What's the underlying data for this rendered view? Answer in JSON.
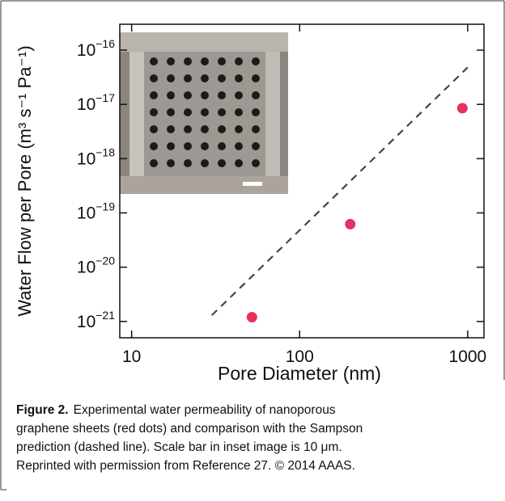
{
  "chart_data": {
    "type": "scatter",
    "xlabel": "Pore Diameter (nm)",
    "ylabel": "Water Flow per Pore (m³ s⁻¹ Pa⁻¹)",
    "xscale": "log",
    "yscale": "log",
    "xlim": [
      8.5,
      1250
    ],
    "ylim": [
      5e-22,
      3e-16
    ],
    "xticks": [
      10,
      100,
      1000
    ],
    "yticks": [
      {
        "value": 1e-16,
        "label": "10",
        "sup": "−16"
      },
      {
        "value": 1e-17,
        "label": "10",
        "sup": "−17"
      },
      {
        "value": 1e-18,
        "label": "10",
        "sup": "−18"
      },
      {
        "value": 1e-19,
        "label": "10",
        "sup": "−19"
      },
      {
        "value": 1e-20,
        "label": "10",
        "sup": "−20"
      },
      {
        "value": 1e-21,
        "label": "10",
        "sup": "−21"
      }
    ],
    "series": [
      {
        "style": "markers",
        "color": "#e6305e",
        "x": [
          52,
          200,
          930
        ],
        "values": [
          1.2e-21,
          6.2e-20,
          8.5e-18
        ]
      },
      {
        "style": "dashed",
        "color": "#444444",
        "x": [
          30,
          1000
        ],
        "values": [
          1.3e-21,
          4.8e-17
        ]
      }
    ]
  },
  "caption": {
    "label": "Figure 2.",
    "lines": [
      "Experimental water permeability of nanoporous",
      "graphene sheets (red dots) and comparison with the Sampson",
      "prediction (dashed line). Scale bar in inset image is 10 μm.",
      "Reprinted with permission from Reference 27. © 2014 AAAS."
    ]
  }
}
